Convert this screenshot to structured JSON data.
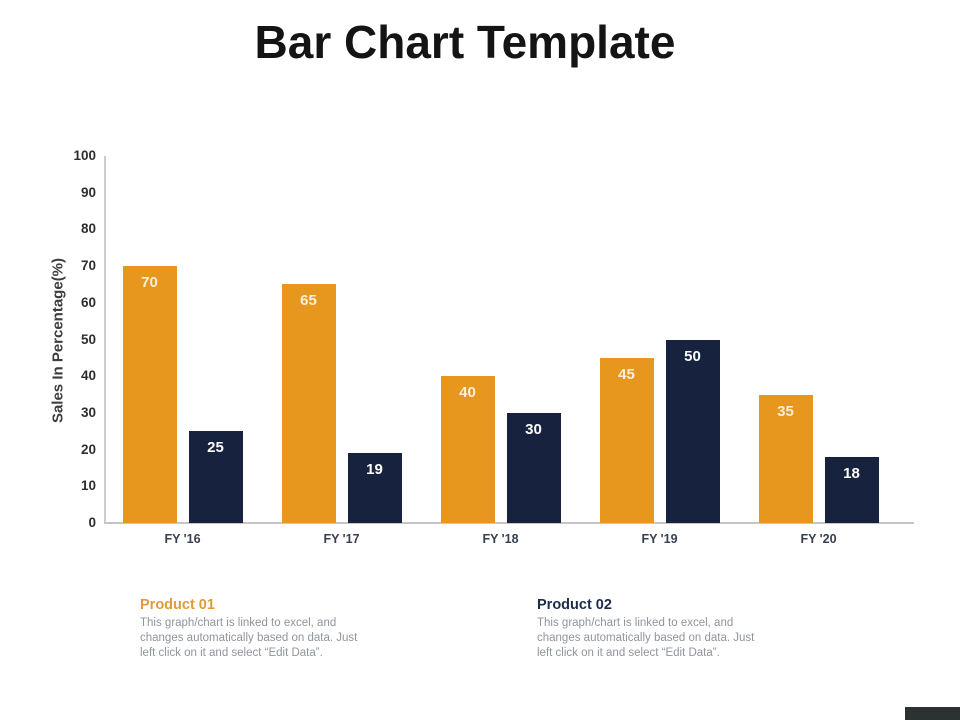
{
  "slide": {
    "title": "Bar Chart Template",
    "background_color": "#ffffff",
    "footer_bar_color": "#2c3231"
  },
  "chart_data": {
    "type": "bar",
    "title": "",
    "categories": [
      "FY '16",
      "FY '17",
      "FY '18",
      "FY '19",
      "FY '20"
    ],
    "series": [
      {
        "name": "Product 01",
        "color": "#E8971E",
        "label_color": "#F8EFDA",
        "values": [
          70,
          65,
          40,
          45,
          35
        ]
      },
      {
        "name": "Product 02",
        "color": "#17233E",
        "label_color": "#FDFDFD",
        "values": [
          25,
          19,
          30,
          50,
          18
        ]
      }
    ],
    "xlabel": "",
    "ylabel": "Sales In Percentage(%)",
    "ylim": [
      0,
      100
    ],
    "yticks": [
      0,
      10,
      20,
      30,
      40,
      50,
      60,
      70,
      80,
      90,
      100
    ],
    "grid": false,
    "legend_position": "below-as-text-blocks",
    "bar_value_labels": "inside-top"
  },
  "legend_blocks": [
    {
      "heading": "Product 01",
      "heading_color": "#E09A39",
      "body": "This graph/chart is linked to excel, and\nchanges automatically based on data.  Just\nleft click on it and select “Edit Data”."
    },
    {
      "heading": "Product 02",
      "heading_color": "#1F2C49",
      "body": "This graph/chart is linked to excel, and\nchanges automatically based on data.  Just\nleft click on it and select “Edit Data”."
    }
  ]
}
